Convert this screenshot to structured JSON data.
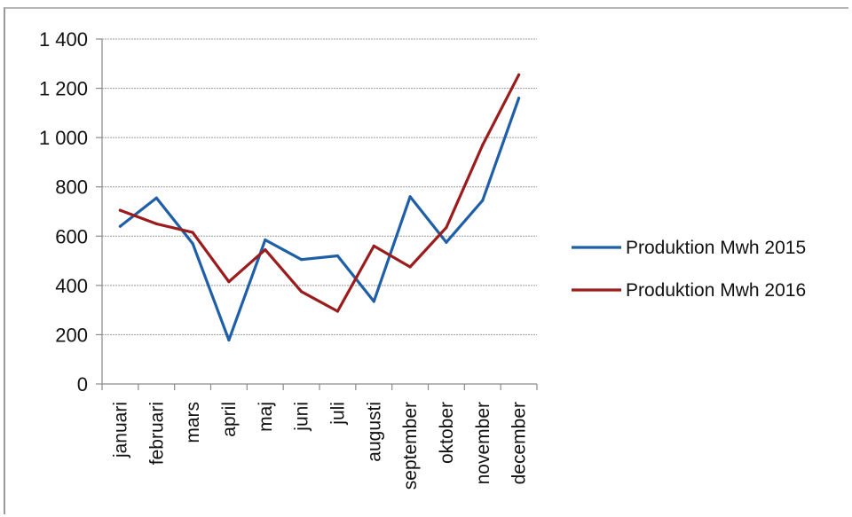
{
  "chart_data": {
    "type": "line",
    "categories": [
      "januari",
      "februari",
      "mars",
      "april",
      "maj",
      "juni",
      "juli",
      "augusti",
      "september",
      "oktober",
      "november",
      "december"
    ],
    "series": [
      {
        "name": "Produktion Mwh 2015",
        "color": "#1f5fa8",
        "values": [
          640,
          755,
          570,
          178,
          585,
          505,
          520,
          335,
          760,
          575,
          745,
          1160
        ]
      },
      {
        "name": "Produktion Mwh 2016",
        "color": "#9b1c1c",
        "values": [
          705,
          650,
          615,
          415,
          545,
          375,
          295,
          560,
          475,
          635,
          970,
          1255
        ]
      }
    ],
    "yticks": [
      "0",
      "200",
      "400",
      "600",
      "800",
      "1 000",
      "1 200",
      "1 400"
    ],
    "ylim": [
      0,
      1400
    ],
    "grid": true,
    "legend": "right"
  }
}
